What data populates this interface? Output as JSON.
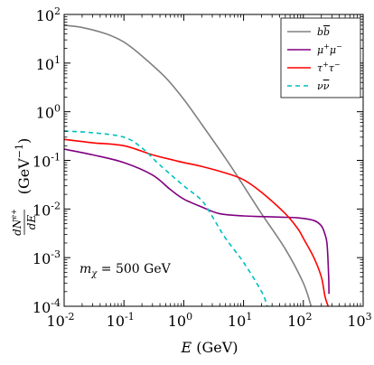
{
  "chart_data": {
    "type": "line",
    "x_scale": "log",
    "y_scale": "log",
    "xlim": [
      0.01,
      1000
    ],
    "ylim": [
      0.0001,
      100
    ],
    "xlabel": "E (GeV)",
    "ylabel": "dN^{e+}/dE (GeV^{-1})",
    "annotation": "m_χ = 500 GeV",
    "legend": {
      "placement": "top-right"
    },
    "grid": false,
    "x_ticks": [
      {
        "value": 0.01,
        "base": "10",
        "exp": "-2"
      },
      {
        "value": 0.1,
        "base": "10",
        "exp": "-1"
      },
      {
        "value": 1,
        "base": "10",
        "exp": "0"
      },
      {
        "value": 10,
        "base": "10",
        "exp": "1"
      },
      {
        "value": 100,
        "base": "10",
        "exp": "2"
      },
      {
        "value": 1000,
        "base": "10",
        "exp": "3"
      }
    ],
    "y_ticks": [
      {
        "value": 0.0001,
        "base": "10",
        "exp": "-4"
      },
      {
        "value": 0.001,
        "base": "10",
        "exp": "-3"
      },
      {
        "value": 0.01,
        "base": "10",
        "exp": "-2"
      },
      {
        "value": 0.1,
        "base": "10",
        "exp": "-1"
      },
      {
        "value": 1,
        "base": "10",
        "exp": "0"
      },
      {
        "value": 10,
        "base": "10",
        "exp": "1"
      },
      {
        "value": 100,
        "base": "10",
        "exp": "2"
      }
    ],
    "series": [
      {
        "name": "b b̄",
        "color": "#808080",
        "dash": "solid",
        "points": [
          [
            0.01,
            60
          ],
          [
            0.02,
            54
          ],
          [
            0.05,
            40
          ],
          [
            0.1,
            27
          ],
          [
            0.2,
            14
          ],
          [
            0.5,
            5
          ],
          [
            1,
            1.8
          ],
          [
            2,
            0.55
          ],
          [
            5,
            0.11
          ],
          [
            10,
            0.03
          ],
          [
            20,
            0.008
          ],
          [
            50,
            0.0015
          ],
          [
            100,
            0.0003
          ],
          [
            135,
            0.0001
          ]
        ]
      },
      {
        "name": "μ⁺μ⁻",
        "color": "#800080",
        "dash": "solid",
        "points": [
          [
            0.01,
            0.17
          ],
          [
            0.03,
            0.13
          ],
          [
            0.1,
            0.09
          ],
          [
            0.3,
            0.05
          ],
          [
            0.6,
            0.025
          ],
          [
            1,
            0.016
          ],
          [
            2,
            0.011
          ],
          [
            4,
            0.008
          ],
          [
            10,
            0.0072
          ],
          [
            20,
            0.007
          ],
          [
            40,
            0.0068
          ],
          [
            80,
            0.0066
          ],
          [
            150,
            0.0058
          ],
          [
            200,
            0.0045
          ],
          [
            230,
            0.003
          ],
          [
            250,
            0.0018
          ],
          [
            265,
            0.0004
          ],
          [
            268,
            0.00018
          ]
        ]
      },
      {
        "name": "τ⁺τ⁻",
        "color": "#ff0000",
        "dash": "solid",
        "points": [
          [
            0.01,
            0.27
          ],
          [
            0.03,
            0.23
          ],
          [
            0.1,
            0.2
          ],
          [
            0.3,
            0.13
          ],
          [
            0.7,
            0.1
          ],
          [
            1,
            0.09
          ],
          [
            2,
            0.075
          ],
          [
            5,
            0.055
          ],
          [
            10,
            0.04
          ],
          [
            20,
            0.022
          ],
          [
            50,
            0.008
          ],
          [
            80,
            0.004
          ],
          [
            100,
            0.0025
          ],
          [
            150,
            0.001
          ],
          [
            200,
            0.0004
          ],
          [
            230,
            0.00016
          ],
          [
            260,
            0.0001
          ]
        ]
      },
      {
        "name": "ν ν̄",
        "color": "#00bfbf",
        "dash": "dashed",
        "points": [
          [
            0.01,
            0.4
          ],
          [
            0.03,
            0.37
          ],
          [
            0.1,
            0.3
          ],
          [
            0.2,
            0.18
          ],
          [
            0.4,
            0.08
          ],
          [
            1,
            0.03
          ],
          [
            2,
            0.015
          ],
          [
            3,
            0.007
          ],
          [
            5,
            0.0025
          ],
          [
            10,
            0.0008
          ],
          [
            20,
            0.0002
          ],
          [
            25,
            0.0001
          ]
        ]
      }
    ]
  }
}
